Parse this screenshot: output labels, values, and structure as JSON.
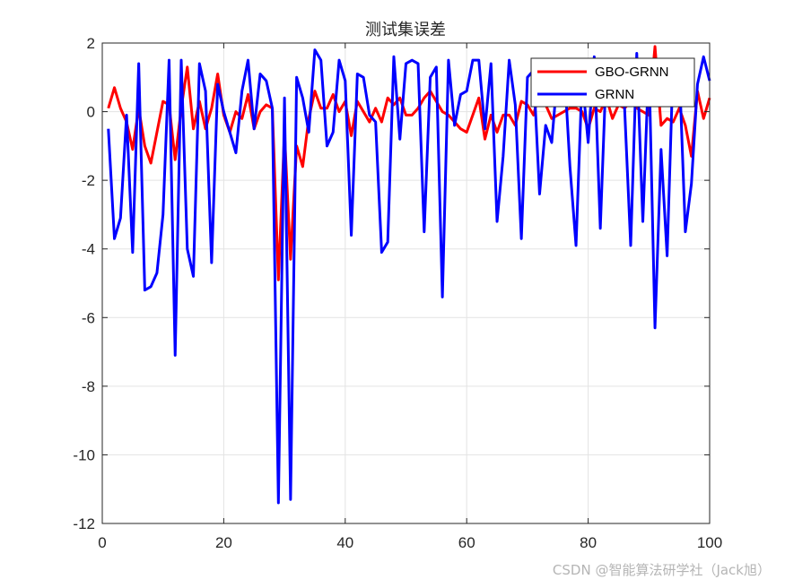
{
  "chart_data": {
    "type": "line",
    "title": "测试集误差",
    "xlim": [
      0,
      100
    ],
    "ylim": [
      -12,
      2
    ],
    "x_ticks": [
      0,
      20,
      40,
      60,
      80,
      100
    ],
    "y_ticks": [
      2,
      0,
      -2,
      -4,
      -6,
      -8,
      -10,
      -12
    ],
    "grid": true,
    "legend_position": "top-right",
    "series": [
      {
        "name": "GBO-GRNN",
        "color": "#ff0000",
        "values": [
          0.1,
          0.7,
          0.1,
          -0.3,
          -1.1,
          0.1,
          -1.0,
          -1.5,
          -0.6,
          0.3,
          0.2,
          -1.4,
          0.1,
          1.3,
          -0.5,
          0.3,
          -0.5,
          0.1,
          1.1,
          -0.1,
          -0.6,
          0.0,
          -0.2,
          0.5,
          -0.5,
          0.0,
          0.2,
          0.1,
          -4.9,
          -0.6,
          -4.3,
          -1.0,
          -1.6,
          -0.2,
          0.6,
          0.1,
          0.1,
          0.5,
          0.0,
          0.3,
          -0.7,
          0.3,
          0.0,
          -0.3,
          0.1,
          -0.3,
          0.4,
          0.2,
          0.4,
          -0.1,
          -0.1,
          0.1,
          0.4,
          0.6,
          0.3,
          0.0,
          -0.1,
          -0.3,
          -0.5,
          -0.6,
          -0.1,
          0.4,
          -0.8,
          -0.1,
          -0.6,
          -0.1,
          -0.1,
          -0.4,
          0.3,
          0.2,
          -0.1,
          0.6,
          0.2,
          -0.2,
          -0.1,
          0.0,
          0.1,
          0.1,
          0.0,
          -0.5,
          0.1,
          0.0,
          0.4,
          -0.2,
          0.2,
          0.1,
          0.3,
          0.1,
          0.0,
          -0.1,
          1.9,
          -0.4,
          -0.2,
          -0.3,
          0.1,
          -0.4,
          -1.3,
          0.6,
          -0.2,
          0.4
        ]
      },
      {
        "name": "GRNN",
        "color": "#0000ff",
        "values": [
          -0.5,
          -3.7,
          -3.1,
          -0.1,
          -4.1,
          1.4,
          -5.2,
          -5.1,
          -4.7,
          -3.0,
          1.5,
          -7.1,
          1.5,
          -4.0,
          -4.8,
          1.4,
          0.6,
          -4.4,
          0.8,
          0.0,
          -0.6,
          -1.2,
          0.6,
          1.5,
          -0.5,
          1.1,
          0.9,
          0.1,
          -11.4,
          0.4,
          -11.3,
          1.0,
          0.4,
          -0.6,
          1.8,
          1.5,
          -1.0,
          -0.6,
          1.5,
          0.9,
          -3.6,
          1.1,
          1.0,
          -0.1,
          -0.3,
          -4.1,
          -3.8,
          1.6,
          -0.8,
          1.4,
          1.5,
          1.4,
          -3.5,
          1.0,
          1.3,
          -5.4,
          1.5,
          -0.4,
          0.5,
          0.6,
          1.5,
          1.5,
          -0.5,
          1.4,
          -3.2,
          -1.3,
          1.5,
          0.2,
          -3.7,
          1.0,
          1.2,
          -2.4,
          -0.4,
          -0.9,
          1.2,
          1.5,
          -1.6,
          -3.9,
          1.0,
          -0.9,
          1.6,
          -3.4,
          1.4,
          1.5,
          1.5,
          0.1,
          -3.9,
          1.7,
          -3.2,
          1.5,
          -6.3,
          -1.1,
          -4.2,
          1.5,
          1.3,
          -3.5,
          -2.1,
          0.8,
          1.6,
          0.9
        ]
      }
    ]
  },
  "watermark": "CSDN @智能算法研学社（Jack旭）"
}
